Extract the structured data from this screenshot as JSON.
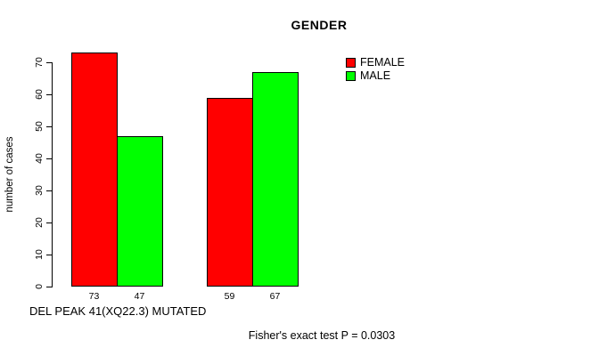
{
  "chart_data": {
    "type": "bar",
    "title": "GENDER",
    "ylabel": "number of cases",
    "xlabel": "DEL PEAK 41(XQ22.3) MUTATED",
    "annotation": "Fisher's exact test P = 0.0303",
    "series": [
      {
        "name": "FEMALE",
        "color": "#FF0000",
        "values": [
          73,
          59
        ]
      },
      {
        "name": "MALE",
        "color": "#00FF00",
        "values": [
          47,
          67
        ]
      }
    ],
    "bar_labels": [
      "73",
      "47",
      "59",
      "67"
    ],
    "yticks": [
      0,
      10,
      20,
      30,
      40,
      50,
      60,
      70
    ],
    "ylim": [
      0,
      70
    ],
    "grid": false,
    "legend_position": "top-right-inside",
    "axis_color": "#000000",
    "bar_border_color": "#000000",
    "background": "#FFFFFF"
  }
}
